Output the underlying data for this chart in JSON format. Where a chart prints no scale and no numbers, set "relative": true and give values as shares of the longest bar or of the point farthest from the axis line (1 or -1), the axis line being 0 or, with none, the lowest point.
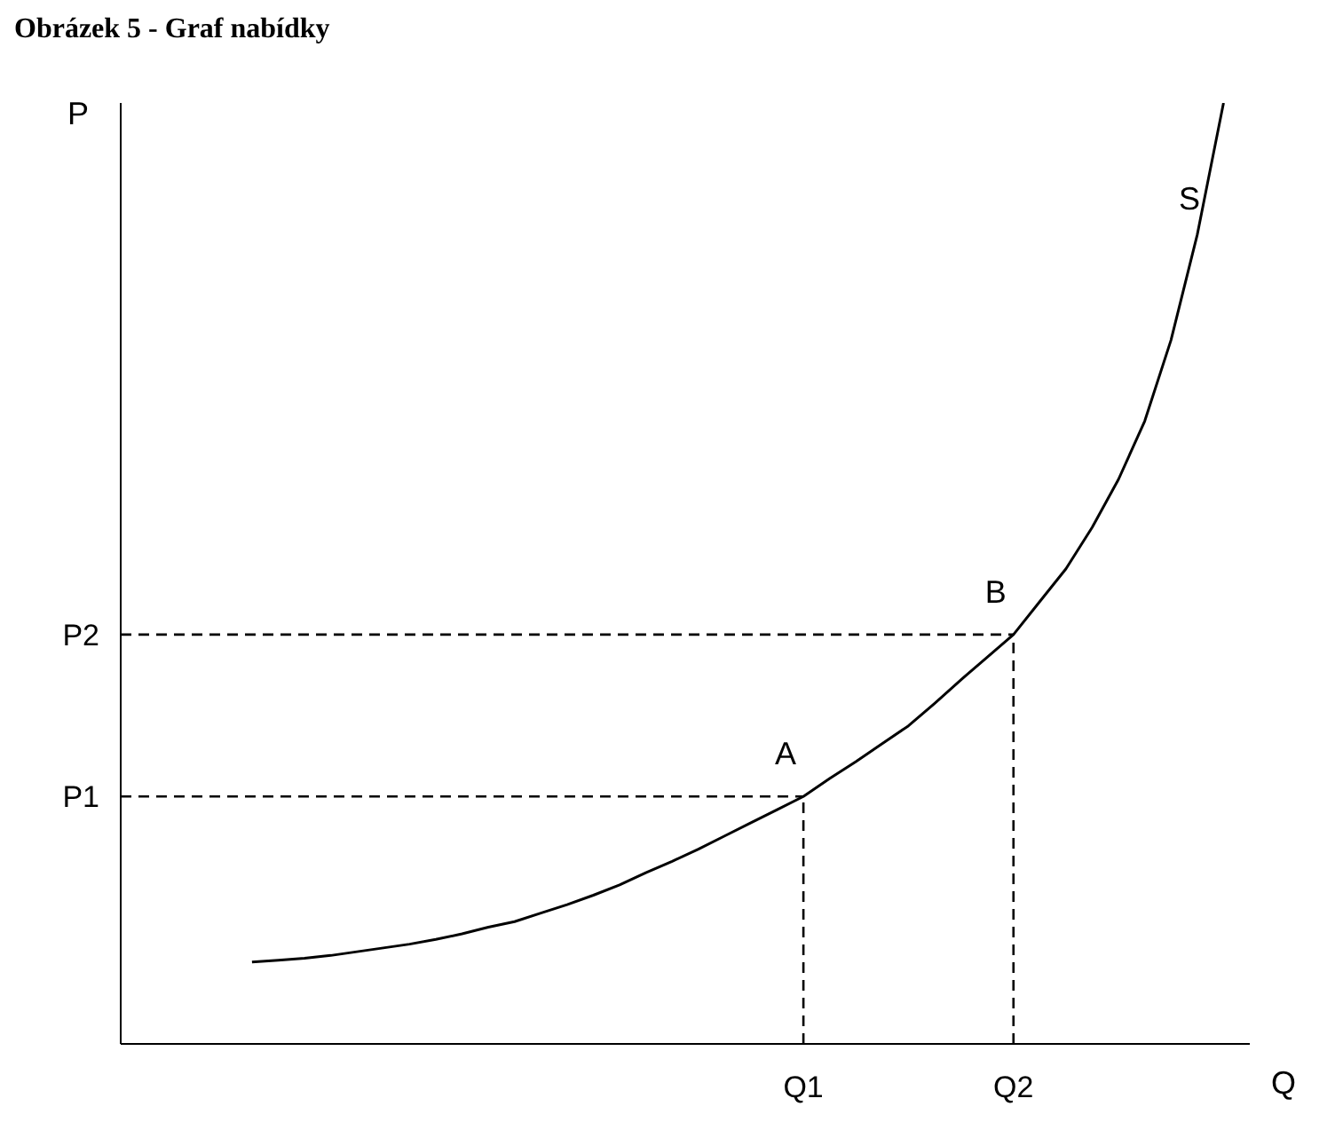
{
  "chart_data": {
    "type": "line",
    "title": "Obrázek 5 - Graf nabídky",
    "xlabel": "Q",
    "ylabel": "P",
    "relative": true,
    "categories": [
      null,
      null,
      null,
      null,
      null,
      null,
      null,
      null,
      null,
      null,
      null,
      null,
      null,
      null,
      null,
      null,
      null,
      null,
      null,
      null,
      null,
      null,
      null,
      null,
      null,
      null,
      "Q1",
      null,
      null,
      null,
      null,
      null,
      null,
      null,
      "Q2",
      null,
      null,
      null,
      null,
      null,
      null,
      null,
      null,
      null
    ],
    "grid": false,
    "marker": "none",
    "series": [
      {
        "color": "#000000",
        "line_style": "solid",
        "values": [
          null,
          null,
          null,
          null,
          null,
          0.087,
          0.089,
          0.091,
          0.094,
          0.098,
          0.102,
          0.106,
          0.111,
          0.117,
          0.124,
          0.13,
          0.139,
          0.148,
          0.158,
          0.169,
          0.182,
          0.194,
          0.207,
          0.221,
          0.235,
          0.249,
          0.263,
          0.282,
          0.3,
          0.319,
          0.338,
          0.362,
          0.387,
          0.411,
          0.435,
          0.47,
          0.505,
          0.549,
          0.6,
          0.662,
          0.748,
          0.86,
          1,
          null
        ]
      }
    ],
    "ref_lines": [
      {
        "axis": "y",
        "value": 0.263,
        "label": "P1",
        "line_style": "dashed",
        "color": "#000000"
      },
      {
        "axis": "y",
        "value": 0.435,
        "label": "P2",
        "line_style": "dashed",
        "color": "#000000"
      },
      {
        "axis": "x",
        "value": "Q1",
        "line_style": "dashed",
        "color": "#000000"
      },
      {
        "axis": "x",
        "value": "Q2",
        "line_style": "dashed",
        "color": "#000000"
      }
    ],
    "annotations": [
      {
        "text": "A",
        "x": "Q1",
        "y": 0.263
      },
      {
        "text": "B",
        "x": "Q2",
        "y": 0.435
      },
      "S"
    ]
  }
}
